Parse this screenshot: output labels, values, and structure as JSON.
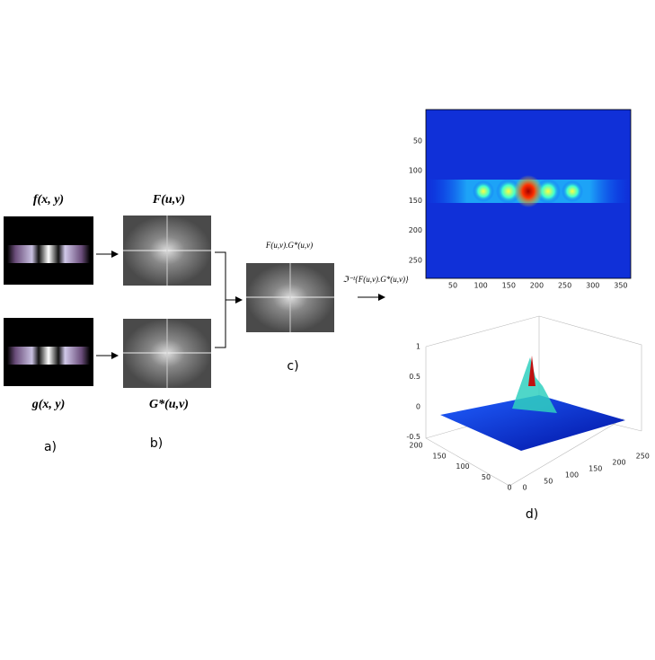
{
  "labels": {
    "f": "f(x, y)",
    "g": "g(x, y)",
    "F": "F(u,v)",
    "G": "G*(u,v)",
    "product": "F(u,v).G*(u,v)",
    "inverse": "ℑ⁻¹{F(u,v).G*(u,v)}",
    "a": "a)",
    "b": "b)",
    "c": "c)",
    "d": "d)"
  },
  "heatmap": {
    "xticks": [
      50,
      100,
      150,
      200,
      250,
      300,
      350
    ],
    "yticks": [
      50,
      100,
      150,
      200,
      250
    ]
  },
  "surface": {
    "zticks": [
      1,
      0.5,
      0,
      -0.5
    ],
    "xticks": [
      0,
      50,
      100,
      150,
      200,
      250
    ],
    "yticks": [
      0,
      50,
      100,
      150,
      200
    ]
  }
}
